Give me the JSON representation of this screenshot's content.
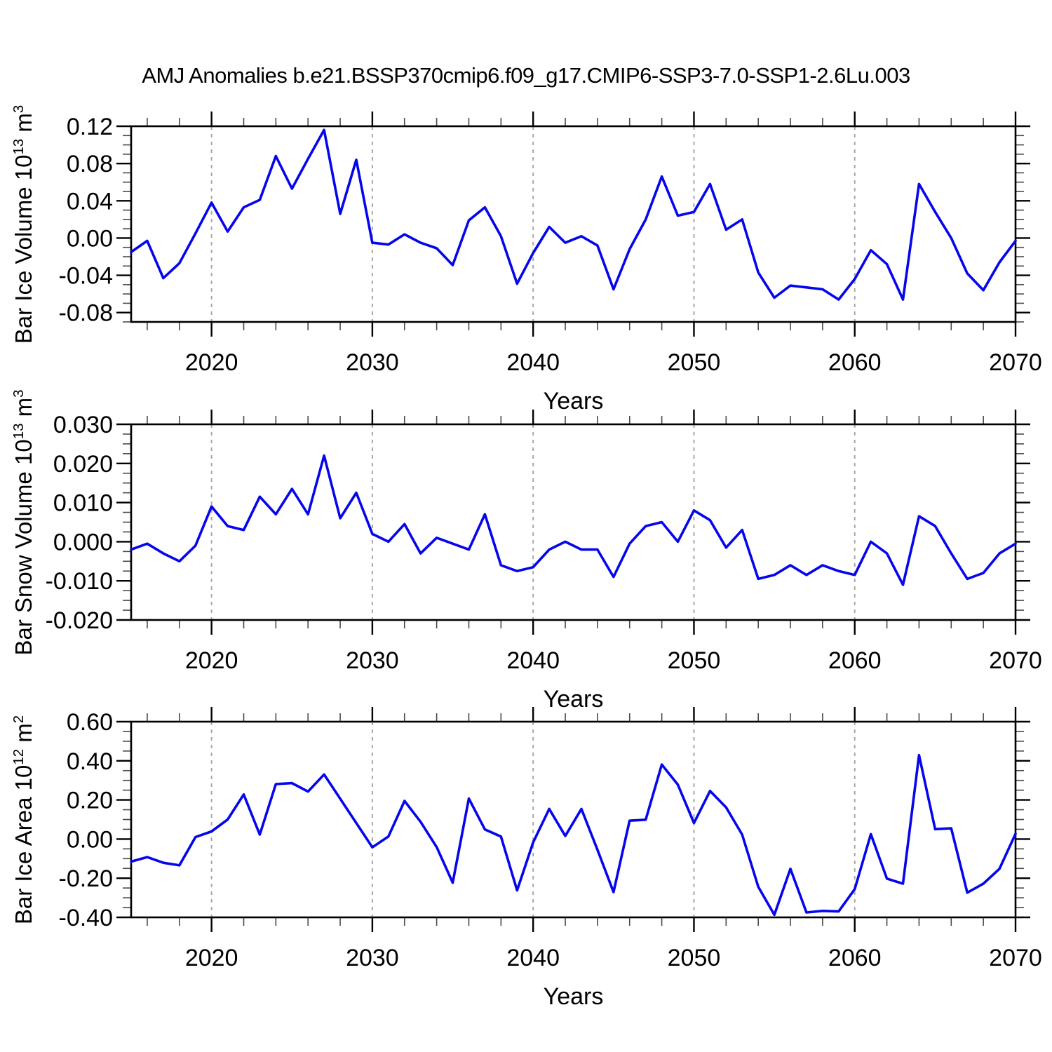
{
  "title": "AMJ Anomalies b.e21.BSSP370cmip6.f09_g17.CMIP6-SSP3-7.0-SSP1-2.6Lu.003",
  "colors": {
    "line": "#0505ee",
    "grid": "#a8a8a8",
    "axis": "#000000",
    "minor_tick": "#4a4a4a",
    "text": "#000000",
    "background": "#ffffff"
  },
  "chart_data": {
    "type": "line",
    "title": "AMJ Anomalies b.e21.BSSP370cmip6.f09_g17.CMIP6-SSP3-7.0-SSP1-2.6Lu.003",
    "x_range": [
      2015,
      2070
    ],
    "x": [
      2015,
      2016,
      2017,
      2018,
      2019,
      2020,
      2021,
      2022,
      2023,
      2024,
      2025,
      2026,
      2027,
      2028,
      2029,
      2030,
      2031,
      2032,
      2033,
      2034,
      2035,
      2036,
      2037,
      2038,
      2039,
      2040,
      2041,
      2042,
      2043,
      2044,
      2045,
      2046,
      2047,
      2048,
      2049,
      2050,
      2051,
      2052,
      2053,
      2054,
      2055,
      2056,
      2057,
      2058,
      2059,
      2060,
      2061,
      2062,
      2063,
      2064,
      2065,
      2066,
      2067,
      2068,
      2069,
      2070
    ],
    "x_ticks": [
      2020,
      2030,
      2040,
      2050,
      2060,
      2070
    ],
    "x_tick_labels": [
      "2020",
      "2030",
      "2040",
      "2050",
      "2060",
      "2070"
    ],
    "x_minor_step": 2,
    "grid_x": [
      2020,
      2030,
      2040,
      2050,
      2060
    ],
    "legend": "none",
    "grid": "vertical-dashed",
    "panels": [
      {
        "name": "bar-ice-volume",
        "ylabel_prefix": "Bar Ice Volume 10",
        "ylabel_exp": "13",
        "ylabel_unit": " m",
        "ylabel_unit_exp": "3",
        "xlabel": "Years",
        "ylim": [
          -0.09,
          0.12
        ],
        "yticks": [
          0.12,
          0.08,
          0.04,
          0.0,
          -0.04,
          -0.08
        ],
        "ytick_labels": [
          "0.12",
          "0.08",
          "0.04",
          "0.00",
          "-0.04",
          "-0.08"
        ],
        "y_minor_step": 0.01,
        "values": [
          -0.015,
          -0.003,
          -0.043,
          -0.027,
          0.005,
          0.038,
          0.007,
          0.033,
          0.041,
          0.088,
          0.053,
          0.085,
          0.116,
          0.026,
          0.084,
          -0.005,
          -0.007,
          0.004,
          -0.005,
          -0.011,
          -0.029,
          0.019,
          0.033,
          0.002,
          -0.049,
          -0.016,
          0.012,
          -0.005,
          0.002,
          -0.008,
          -0.055,
          -0.012,
          0.02,
          0.066,
          0.024,
          0.028,
          0.058,
          0.009,
          0.02,
          -0.037,
          -0.064,
          -0.051,
          -0.053,
          -0.055,
          -0.066,
          -0.044,
          -0.013,
          -0.028,
          -0.066,
          0.058,
          0.028,
          0.0,
          -0.038,
          -0.056,
          -0.026,
          -0.003
        ]
      },
      {
        "name": "bar-snow-volume",
        "ylabel_prefix": "Bar Snow Volume 10",
        "ylabel_exp": "13",
        "ylabel_unit": " m",
        "ylabel_unit_exp": "3",
        "xlabel": "Years",
        "ylim": [
          -0.02,
          0.03
        ],
        "yticks": [
          0.03,
          0.02,
          0.01,
          0.0,
          -0.01,
          -0.02
        ],
        "ytick_labels": [
          "0.030",
          "0.020",
          "0.010",
          "0.000",
          "-0.010",
          "-0.020"
        ],
        "y_minor_step": 0.0025,
        "values": [
          -0.002,
          -0.0005,
          -0.003,
          -0.005,
          -0.001,
          0.009,
          0.004,
          0.003,
          0.0115,
          0.007,
          0.0135,
          0.007,
          0.022,
          0.006,
          0.0125,
          0.002,
          0.0,
          0.0045,
          -0.003,
          0.001,
          -0.0005,
          -0.002,
          0.007,
          -0.006,
          -0.0075,
          -0.0065,
          -0.002,
          0.0,
          -0.002,
          -0.002,
          -0.009,
          -0.0005,
          0.004,
          0.005,
          0.0,
          0.008,
          0.0055,
          -0.0015,
          0.003,
          -0.0095,
          -0.0085,
          -0.006,
          -0.0085,
          -0.006,
          -0.0075,
          -0.0085,
          0.0,
          -0.003,
          -0.011,
          0.0065,
          0.004,
          -0.003,
          -0.0095,
          -0.008,
          -0.003,
          -0.0005
        ]
      },
      {
        "name": "bar-ice-area",
        "ylabel_prefix": "Bar Ice Area 10",
        "ylabel_exp": "12",
        "ylabel_unit": " m",
        "ylabel_unit_exp": "2",
        "xlabel": "Years",
        "ylim": [
          -0.4,
          0.6
        ],
        "yticks": [
          0.6,
          0.4,
          0.2,
          0.0,
          -0.2,
          -0.4
        ],
        "ytick_labels": [
          "0.60",
          "0.40",
          "0.20",
          "0.00",
          "-0.20",
          "-0.40"
        ],
        "y_minor_step": 0.05,
        "values": [
          -0.115,
          -0.092,
          -0.121,
          -0.134,
          0.01,
          0.039,
          0.1,
          0.228,
          0.023,
          0.281,
          0.286,
          0.243,
          0.33,
          0.206,
          0.082,
          -0.042,
          0.013,
          0.195,
          0.088,
          -0.041,
          -0.223,
          0.207,
          0.049,
          0.013,
          -0.262,
          -0.017,
          0.154,
          0.016,
          0.154,
          -0.055,
          -0.271,
          0.094,
          0.099,
          0.381,
          0.278,
          0.082,
          0.246,
          0.162,
          0.023,
          -0.244,
          -0.387,
          -0.152,
          -0.375,
          -0.367,
          -0.37,
          -0.256,
          0.025,
          -0.202,
          -0.228,
          0.429,
          0.051,
          0.055,
          -0.274,
          -0.228,
          -0.152,
          0.027
        ]
      }
    ]
  }
}
